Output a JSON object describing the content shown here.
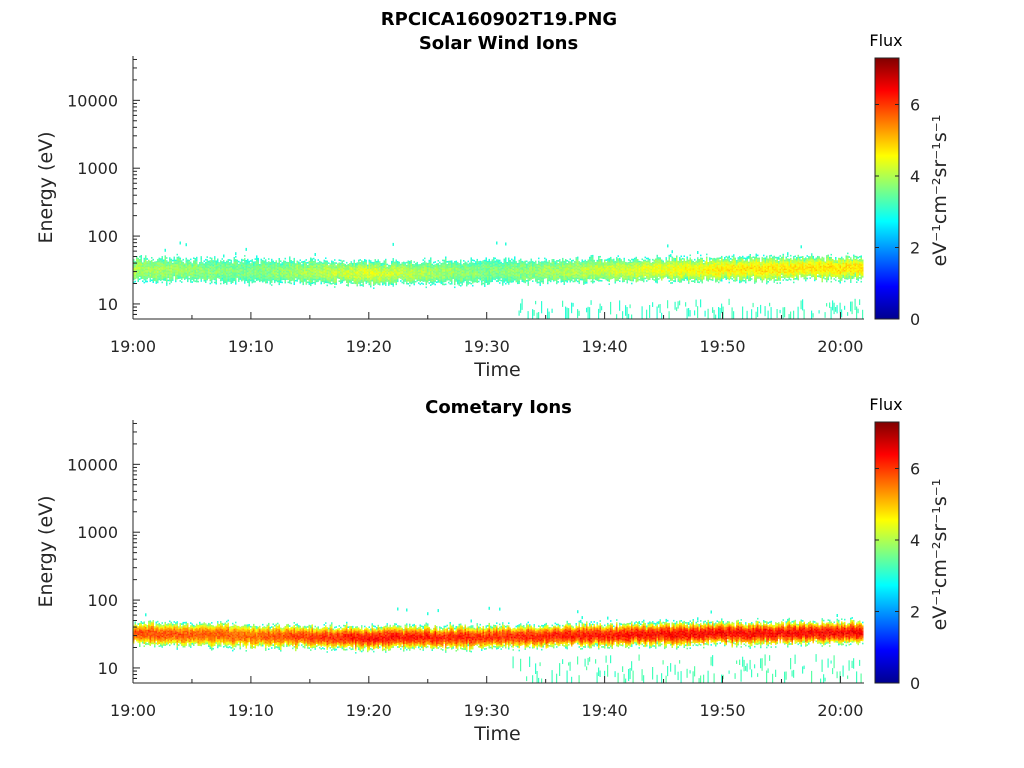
{
  "figure": {
    "title": "RPCICA160902T19.PNG"
  },
  "colormap": [
    "#00008f",
    "#0000ff",
    "#0080ff",
    "#00ffff",
    "#80ff80",
    "#ffff00",
    "#ff8000",
    "#ff0000",
    "#800000"
  ],
  "chart_data": [
    {
      "type": "heatmap",
      "title": "Solar Wind Ions",
      "xlabel": "Time",
      "ylabel": "Energy (eV)",
      "x_range": [
        "19:00",
        "20:02"
      ],
      "xticks": [
        "19:00",
        "19:10",
        "19:20",
        "19:30",
        "19:40",
        "19:50",
        "20:00"
      ],
      "y_scale": "log",
      "ylim": [
        6,
        45000
      ],
      "yticks": [
        "10",
        "100",
        "1000",
        "10000"
      ],
      "colorbar": {
        "title": "Flux",
        "label": "eV⁻¹cm⁻²sr⁻¹s⁻¹",
        "range": [
          0,
          7.3
        ],
        "ticks": [
          "0",
          "2",
          "4",
          "6"
        ]
      },
      "band": {
        "center_energy_eV": [
          [
            0,
            33
          ],
          [
            10,
            31
          ],
          [
            20,
            29
          ],
          [
            30,
            30
          ],
          [
            40,
            32
          ],
          [
            50,
            33
          ],
          [
            62,
            35
          ]
        ],
        "peak_flux": [
          [
            0,
            4.0
          ],
          [
            10,
            3.6
          ],
          [
            20,
            4.3
          ],
          [
            30,
            3.6
          ],
          [
            40,
            4.2
          ],
          [
            50,
            4.7
          ],
          [
            62,
            4.8
          ]
        ],
        "min_flux": 3.0
      },
      "low_energy_scatter": {
        "start_min": 32,
        "energy_range_eV": [
          6,
          12
        ],
        "flux": 3.0
      }
    },
    {
      "type": "heatmap",
      "title": "Cometary Ions",
      "xlabel": "Time",
      "ylabel": "Energy (eV)",
      "x_range": [
        "19:00",
        "20:02"
      ],
      "xticks": [
        "19:00",
        "19:10",
        "19:20",
        "19:30",
        "19:40",
        "19:50",
        "20:00"
      ],
      "y_scale": "log",
      "ylim": [
        6,
        45000
      ],
      "yticks": [
        "10",
        "100",
        "1000",
        "10000"
      ],
      "colorbar": {
        "title": "Flux",
        "label": "eV⁻¹cm⁻²sr⁻¹s⁻¹",
        "range": [
          0,
          7.3
        ],
        "ticks": [
          "0",
          "2",
          "4",
          "6"
        ]
      },
      "band": {
        "center_energy_eV": [
          [
            0,
            33
          ],
          [
            10,
            30
          ],
          [
            20,
            28
          ],
          [
            30,
            29
          ],
          [
            40,
            31
          ],
          [
            50,
            33
          ],
          [
            62,
            34
          ]
        ],
        "peak_flux": [
          [
            0,
            5.9
          ],
          [
            10,
            5.7
          ],
          [
            20,
            6.3
          ],
          [
            30,
            6.1
          ],
          [
            40,
            6.3
          ],
          [
            50,
            6.4
          ],
          [
            62,
            6.4
          ]
        ],
        "min_flux": 3.0
      },
      "low_energy_scatter": {
        "start_min": 32,
        "energy_range_eV": [
          6,
          16
        ],
        "flux": 3.1
      }
    }
  ]
}
